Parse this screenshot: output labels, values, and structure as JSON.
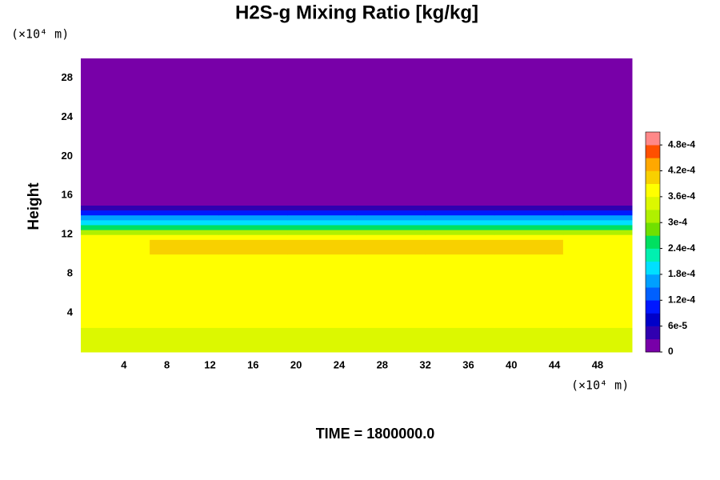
{
  "chart_data": {
    "type": "contour",
    "title": "H2S-g Mixing Ratio [kg/kg]",
    "y_label": "Height",
    "y_unit": "(×10⁴ m)",
    "x_unit": "(×10⁴ m)",
    "footer": "TIME = 1800000.0",
    "xlim": [
      0,
      51.2
    ],
    "ylim": [
      0,
      30
    ],
    "xticks": [
      4,
      8,
      12,
      16,
      20,
      24,
      28,
      32,
      36,
      40,
      44,
      48
    ],
    "yticks": [
      4,
      8,
      12,
      16,
      20,
      24,
      28
    ],
    "x_edges": [
      0,
      6.4,
      12.8,
      19.2,
      25.6,
      32,
      38.4,
      44.8,
      51.2
    ],
    "y_edges": [
      0,
      2.5,
      10,
      11.5,
      12,
      12.5,
      13,
      13.5,
      14,
      14.5,
      15,
      30
    ],
    "z": [
      [
        0.00035,
        0.00035,
        0.00035,
        0.00035,
        0.00035,
        0.00035,
        0.00035,
        0.00035
      ],
      [
        0.00037,
        0.00037,
        0.00037,
        0.00037,
        0.00037,
        0.00037,
        0.00037,
        0.00037
      ],
      [
        0.00037,
        0.000395,
        0.000395,
        0.000395,
        0.000395,
        0.000395,
        0.000395,
        0.00037
      ],
      [
        0.00037,
        0.00037,
        0.00037,
        0.00037,
        0.00037,
        0.00037,
        0.00037,
        0.00037
      ],
      [
        0.00032,
        0.00032,
        0.00032,
        0.00032,
        0.00032,
        0.00032,
        0.00032,
        0.00032
      ],
      [
        0.00026,
        0.00026,
        0.00026,
        0.00026,
        0.00026,
        0.00026,
        0.00026,
        0.00026
      ],
      [
        0.0002,
        0.0002,
        0.0002,
        0.0002,
        0.0002,
        0.0002,
        0.0002,
        0.0002
      ],
      [
        0.00015,
        0.00015,
        0.00015,
        0.00015,
        0.00015,
        0.00015,
        0.00015,
        0.00015
      ],
      [
        0.0001,
        0.0001,
        0.0001,
        0.0001,
        0.0001,
        0.0001,
        0.0001,
        0.0001
      ],
      [
        5e-05,
        5e-05,
        5e-05,
        5e-05,
        5e-05,
        5e-05,
        5e-05,
        5e-05
      ],
      [
        1e-05,
        1e-05,
        1e-05,
        1e-05,
        1e-05,
        1e-05,
        1e-05,
        1e-05
      ]
    ],
    "levels": [
      0,
      3e-05,
      6e-05,
      9e-05,
      0.00012,
      0.00015,
      0.00018,
      0.00021,
      0.00024,
      0.00027,
      0.0003,
      0.00033,
      0.00036,
      0.00039,
      0.00042,
      0.00045,
      0.00048,
      0.00051
    ],
    "level_colors": [
      "#7800a8",
      "#3000b0",
      "#0000c8",
      "#0018ff",
      "#0060ff",
      "#00a0ff",
      "#00e0ff",
      "#00f0b0",
      "#00e060",
      "#70e000",
      "#b0f000",
      "#dcf800",
      "#ffff00",
      "#f8d000",
      "#ffa800",
      "#ff5000",
      "#ff8888"
    ],
    "colorbar_ticks": [
      0,
      {
        "value": 6e-05,
        "label": "6e-5"
      },
      {
        "value": 0.00012,
        "label": "1.2e-4"
      },
      {
        "value": 0.00018,
        "label": "1.8e-4"
      },
      {
        "value": 0.00024,
        "label": "2.4e-4"
      },
      {
        "value": 0.0003,
        "label": "3e-4"
      },
      {
        "value": 0.00036,
        "label": "3.6e-4"
      },
      {
        "value": 0.00042,
        "label": "4.2e-4"
      },
      {
        "value": 0.00048,
        "label": "4.8e-4"
      }
    ]
  }
}
